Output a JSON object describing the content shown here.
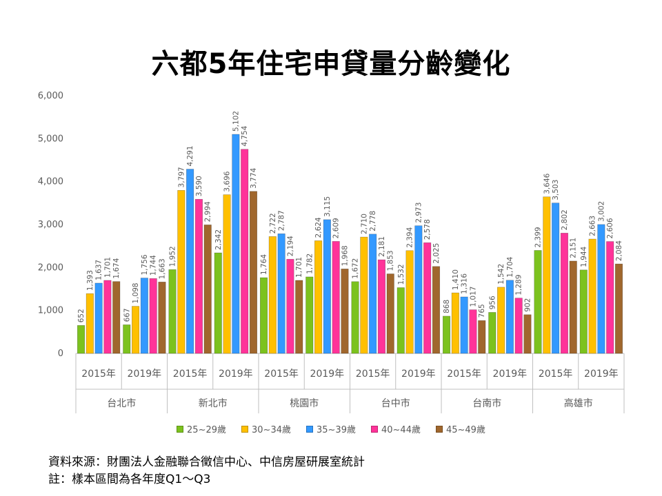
{
  "title": "六都5年住宅申貸量分齡變化",
  "source": "資料來源：財團法人金融聯合徵信中心、中信房屋研展室統計",
  "footnote": "註：樣本區間為各年度Q1～Q3",
  "chart_data": {
    "type": "bar",
    "title": "六都5年住宅申貸量分齡變化",
    "ylim": [
      0,
      6000
    ],
    "yticks": [
      "0",
      "1,000",
      "2,000",
      "3,000",
      "4,000",
      "5,000",
      "6,000"
    ],
    "grid": false,
    "legend_position": "bottom",
    "groups": [
      {
        "city": "台北市",
        "years": [
          {
            "year": "2015年",
            "values": [
              652,
              1393,
              1637,
              1701,
              1674
            ]
          },
          {
            "year": "2019年",
            "values": [
              667,
              1098,
              1756,
              1744,
              1663
            ]
          }
        ]
      },
      {
        "city": "新北市",
        "years": [
          {
            "year": "2015年",
            "values": [
              1952,
              3797,
              4291,
              3590,
              2994
            ]
          },
          {
            "year": "2019年",
            "values": [
              2342,
              3696,
              5102,
              4754,
              3774
            ]
          }
        ]
      },
      {
        "city": "桃園市",
        "years": [
          {
            "year": "2015年",
            "values": [
              1764,
              2722,
              2787,
              2194,
              1701
            ]
          },
          {
            "year": "2019年",
            "values": [
              1782,
              2624,
              3115,
              2609,
              1968
            ]
          }
        ]
      },
      {
        "city": "台中市",
        "years": [
          {
            "year": "2015年",
            "values": [
              1672,
              2710,
              2778,
              2181,
              1853
            ]
          },
          {
            "year": "2019年",
            "values": [
              1532,
              2394,
              2973,
              2578,
              2025
            ]
          }
        ]
      },
      {
        "city": "台南市",
        "years": [
          {
            "year": "2015年",
            "values": [
              868,
              1410,
              1316,
              1017,
              765
            ]
          },
          {
            "year": "2019年",
            "values": [
              956,
              1542,
              1704,
              1289,
              902
            ]
          }
        ]
      },
      {
        "city": "高雄市",
        "years": [
          {
            "year": "2015年",
            "values": [
              2399,
              3646,
              3503,
              2802,
              2151
            ]
          },
          {
            "year": "2019年",
            "values": [
              1944,
              2663,
              3002,
              2606,
              2084
            ]
          }
        ]
      }
    ],
    "series": [
      {
        "name": "25~29歲",
        "color": "#7cc21e"
      },
      {
        "name": "30~34歲",
        "color": "#ffc000"
      },
      {
        "name": "35~39歲",
        "color": "#3399ff"
      },
      {
        "name": "40~44歲",
        "color": "#ff3399"
      },
      {
        "name": "45~49歲",
        "color": "#a0672d"
      }
    ]
  }
}
